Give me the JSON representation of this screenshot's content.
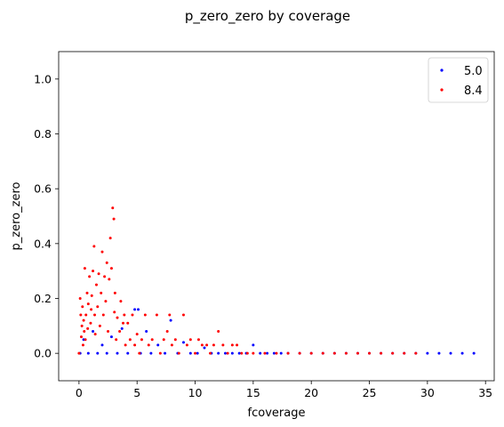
{
  "chart_data": {
    "type": "scatter",
    "title": "p_zero_zero by coverage",
    "xlabel": "fcoverage",
    "ylabel": "p_zero_zero",
    "xlim": [
      -1.75,
      35.75
    ],
    "ylim": [
      -0.1,
      1.1
    ],
    "xticks": [
      0,
      5,
      10,
      15,
      20,
      25,
      30,
      35
    ],
    "yticks": [
      0.0,
      0.2,
      0.4,
      0.6,
      0.8,
      1.0
    ],
    "ytick_labels": [
      "0.0",
      "0.2",
      "0.4",
      "0.6",
      "0.8",
      "1.0"
    ],
    "legend_position": "top-right",
    "series": [
      {
        "name": "5.0",
        "color": "#0000ff",
        "points": [
          [
            0.1,
            0.0
          ],
          [
            0.4,
            0.05
          ],
          [
            0.8,
            0.0
          ],
          [
            1.2,
            0.08
          ],
          [
            1.6,
            0.0
          ],
          [
            2.0,
            0.03
          ],
          [
            2.4,
            0.0
          ],
          [
            2.8,
            0.06
          ],
          [
            3.3,
            0.0
          ],
          [
            3.7,
            0.09
          ],
          [
            4.2,
            0.0
          ],
          [
            4.8,
            0.16
          ],
          [
            5.1,
            0.16
          ],
          [
            5.3,
            0.0
          ],
          [
            5.8,
            0.08
          ],
          [
            6.2,
            0.0
          ],
          [
            6.8,
            0.03
          ],
          [
            7.4,
            0.0
          ],
          [
            7.9,
            0.12
          ],
          [
            8.5,
            0.0
          ],
          [
            9.0,
            0.04
          ],
          [
            9.6,
            0.0
          ],
          [
            10.2,
            0.0
          ],
          [
            10.8,
            0.02
          ],
          [
            11.4,
            0.0
          ],
          [
            12.0,
            0.0
          ],
          [
            12.6,
            0.0
          ],
          [
            13.2,
            0.0
          ],
          [
            13.8,
            0.0
          ],
          [
            14.4,
            0.0
          ],
          [
            15.0,
            0.03
          ],
          [
            15.6,
            0.0
          ],
          [
            16.2,
            0.0
          ],
          [
            16.8,
            0.0
          ],
          [
            17.4,
            0.0
          ],
          [
            18.0,
            0.0
          ],
          [
            19.0,
            0.0
          ],
          [
            20.0,
            0.0
          ],
          [
            21.0,
            0.0
          ],
          [
            22.0,
            0.0
          ],
          [
            23.0,
            0.0
          ],
          [
            24.0,
            0.0
          ],
          [
            25.0,
            0.0
          ],
          [
            26.0,
            0.0
          ],
          [
            27.0,
            0.0
          ],
          [
            28.0,
            0.0
          ],
          [
            29.0,
            0.0
          ],
          [
            30.0,
            0.0
          ],
          [
            31.0,
            0.0
          ],
          [
            32.0,
            0.0
          ],
          [
            33.0,
            0.0
          ],
          [
            34.0,
            0.0
          ]
        ]
      },
      {
        "name": "8.4",
        "color": "#ff0000",
        "points": [
          [
            0.0,
            0.0
          ],
          [
            0.1,
            0.2
          ],
          [
            0.15,
            0.14
          ],
          [
            0.2,
            0.06
          ],
          [
            0.25,
            0.1
          ],
          [
            0.3,
            0.17
          ],
          [
            0.35,
            0.03
          ],
          [
            0.4,
            0.12
          ],
          [
            0.45,
            0.08
          ],
          [
            0.5,
            0.31
          ],
          [
            0.55,
            0.05
          ],
          [
            0.6,
            0.14
          ],
          [
            0.7,
            0.22
          ],
          [
            0.75,
            0.09
          ],
          [
            0.8,
            0.18
          ],
          [
            0.9,
            0.28
          ],
          [
            1.0,
            0.11
          ],
          [
            1.05,
            0.16
          ],
          [
            1.1,
            0.21
          ],
          [
            1.2,
            0.3
          ],
          [
            1.3,
            0.39
          ],
          [
            1.35,
            0.14
          ],
          [
            1.4,
            0.07
          ],
          [
            1.5,
            0.25
          ],
          [
            1.6,
            0.17
          ],
          [
            1.7,
            0.29
          ],
          [
            1.8,
            0.1
          ],
          [
            1.9,
            0.22
          ],
          [
            2.0,
            0.37
          ],
          [
            2.1,
            0.14
          ],
          [
            2.2,
            0.28
          ],
          [
            2.3,
            0.19
          ],
          [
            2.4,
            0.33
          ],
          [
            2.5,
            0.08
          ],
          [
            2.6,
            0.27
          ],
          [
            2.7,
            0.42
          ],
          [
            2.8,
            0.31
          ],
          [
            2.9,
            0.53
          ],
          [
            3.0,
            0.49
          ],
          [
            3.05,
            0.15
          ],
          [
            3.1,
            0.22
          ],
          [
            3.2,
            0.05
          ],
          [
            3.3,
            0.13
          ],
          [
            3.5,
            0.08
          ],
          [
            3.6,
            0.19
          ],
          [
            3.8,
            0.11
          ],
          [
            3.9,
            0.14
          ],
          [
            4.0,
            0.03
          ],
          [
            4.2,
            0.11
          ],
          [
            4.4,
            0.05
          ],
          [
            4.6,
            0.14
          ],
          [
            4.8,
            0.03
          ],
          [
            5.0,
            0.07
          ],
          [
            5.2,
            0.0
          ],
          [
            5.4,
            0.05
          ],
          [
            5.7,
            0.14
          ],
          [
            6.0,
            0.03
          ],
          [
            6.3,
            0.05
          ],
          [
            6.7,
            0.14
          ],
          [
            7.0,
            0.0
          ],
          [
            7.3,
            0.05
          ],
          [
            7.6,
            0.08
          ],
          [
            7.8,
            0.14
          ],
          [
            8.0,
            0.03
          ],
          [
            8.3,
            0.05
          ],
          [
            8.6,
            0.0
          ],
          [
            9.0,
            0.14
          ],
          [
            9.3,
            0.03
          ],
          [
            9.6,
            0.05
          ],
          [
            10.0,
            0.0
          ],
          [
            10.3,
            0.05
          ],
          [
            10.6,
            0.03
          ],
          [
            11.0,
            0.03
          ],
          [
            11.3,
            0.0
          ],
          [
            11.6,
            0.03
          ],
          [
            12.0,
            0.08
          ],
          [
            12.4,
            0.03
          ],
          [
            12.8,
            0.0
          ],
          [
            13.2,
            0.03
          ],
          [
            13.6,
            0.03
          ],
          [
            14.0,
            0.0
          ],
          [
            14.5,
            0.0
          ],
          [
            15.0,
            0.0
          ],
          [
            16.0,
            0.0
          ],
          [
            17.0,
            0.0
          ],
          [
            18.0,
            0.0
          ],
          [
            19.0,
            0.0
          ],
          [
            20.0,
            0.0
          ],
          [
            21.0,
            0.0
          ],
          [
            22.0,
            0.0
          ],
          [
            23.0,
            0.0
          ],
          [
            24.0,
            0.0
          ],
          [
            25.0,
            0.0
          ],
          [
            26.0,
            0.0
          ],
          [
            27.0,
            0.0
          ],
          [
            28.0,
            0.0
          ],
          [
            29.0,
            0.0
          ]
        ]
      }
    ]
  }
}
